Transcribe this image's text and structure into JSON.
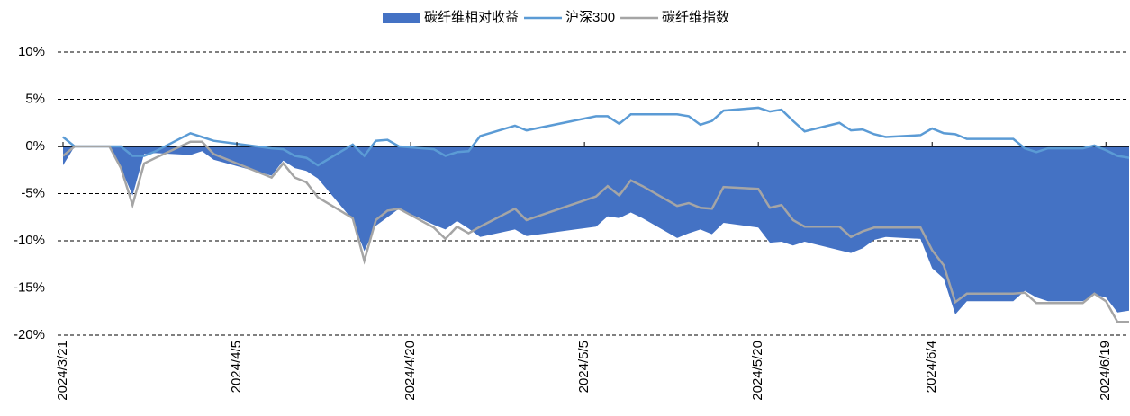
{
  "chart_data": {
    "type": "line",
    "x": [
      "2024/3/21",
      "2024/3/22",
      "2024/3/25",
      "2024/3/26",
      "2024/3/27",
      "2024/3/28",
      "2024/3/29",
      "2024/4/1",
      "2024/4/2",
      "2024/4/3",
      "2024/4/8",
      "2024/4/9",
      "2024/4/10",
      "2024/4/11",
      "2024/4/12",
      "2024/4/15",
      "2024/4/16",
      "2024/4/17",
      "2024/4/18",
      "2024/4/19",
      "2024/4/22",
      "2024/4/23",
      "2024/4/24",
      "2024/4/25",
      "2024/4/26",
      "2024/4/29",
      "2024/4/30",
      "2024/5/6",
      "2024/5/7",
      "2024/5/8",
      "2024/5/9",
      "2024/5/10",
      "2024/5/13",
      "2024/5/14",
      "2024/5/15",
      "2024/5/16",
      "2024/5/17",
      "2024/5/20",
      "2024/5/21",
      "2024/5/22",
      "2024/5/23",
      "2024/5/24",
      "2024/5/27",
      "2024/5/28",
      "2024/5/29",
      "2024/5/30",
      "2024/5/31",
      "2024/6/3",
      "2024/6/4",
      "2024/6/5",
      "2024/6/6",
      "2024/6/7",
      "2024/6/11",
      "2024/6/12",
      "2024/6/13",
      "2024/6/14",
      "2024/6/17",
      "2024/6/18",
      "2024/6/19",
      "2024/6/20",
      "2024/6/21"
    ],
    "series": [
      {
        "name": "碳纤维相对收益",
        "kind": "area",
        "color": "#4472c4",
        "values": [
          -2.0,
          0,
          0,
          -2.3,
          -5.2,
          -0.8,
          -0.7,
          -0.9,
          -0.5,
          -1.4,
          -3.1,
          -1.5,
          -2.3,
          -2.6,
          -3.4,
          -7.8,
          -11.1,
          -8.4,
          -7.5,
          -6.6,
          -8.3,
          -8.8,
          -7.9,
          -8.7,
          -9.6,
          -8.8,
          -9.5,
          -8.5,
          -7.4,
          -7.6,
          -7.0,
          -7.6,
          -9.7,
          -9.2,
          -8.8,
          -9.3,
          -8.1,
          -8.6,
          -10.2,
          -10.1,
          -10.5,
          -10.1,
          -11.0,
          -11.3,
          -10.8,
          -9.9,
          -9.6,
          -9.8,
          -12.9,
          -14.0,
          -17.8,
          -16.4,
          -16.4,
          -15.3,
          -16.0,
          -16.4,
          -16.4,
          -15.7,
          -16.0,
          -17.6,
          -17.4
        ]
      },
      {
        "name": "沪深300",
        "kind": "line",
        "color": "#5b9bd5",
        "values": [
          1.0,
          0,
          0,
          0,
          -1.0,
          -1.0,
          -0.5,
          1.4,
          1.0,
          0.6,
          -0.2,
          -0.3,
          -1.0,
          -1.2,
          -2.0,
          0.2,
          -1.0,
          0.6,
          0.7,
          0,
          -0.3,
          -1.0,
          -0.6,
          -0.5,
          1.1,
          2.2,
          1.7,
          3.2,
          3.2,
          2.4,
          3.4,
          3.4,
          3.4,
          3.2,
          2.3,
          2.7,
          3.8,
          4.1,
          3.7,
          3.9,
          2.7,
          1.6,
          2.5,
          1.7,
          1.8,
          1.3,
          1.0,
          1.2,
          1.9,
          1.4,
          1.3,
          0.8,
          0.8,
          -0.2,
          -0.6,
          -0.2,
          -0.2,
          0.1,
          -0.4,
          -1.0,
          -1.2
        ]
      },
      {
        "name": "碳纤维指数",
        "kind": "line",
        "color": "#a5a5a5",
        "values": [
          -1.0,
          0,
          0,
          -2.3,
          -6.2,
          -1.8,
          -1.2,
          0.5,
          0.5,
          -0.8,
          -3.3,
          -1.8,
          -3.3,
          -3.8,
          -5.4,
          -7.6,
          -12.1,
          -7.8,
          -6.8,
          -6.6,
          -8.6,
          -9.8,
          -8.5,
          -9.2,
          -8.5,
          -6.6,
          -7.8,
          -5.3,
          -4.2,
          -5.2,
          -3.6,
          -4.2,
          -6.3,
          -6.0,
          -6.5,
          -6.6,
          -4.3,
          -4.5,
          -6.5,
          -6.2,
          -7.8,
          -8.5,
          -8.5,
          -9.6,
          -9.0,
          -8.6,
          -8.6,
          -8.6,
          -11.0,
          -12.6,
          -16.5,
          -15.6,
          -15.6,
          -15.5,
          -16.6,
          -16.6,
          -16.6,
          -15.6,
          -16.4,
          -18.6,
          -18.6
        ]
      }
    ],
    "xlim": [
      "2024/3/21",
      "2024/6/21"
    ],
    "xticks": [
      "2024/3/21",
      "2024/4/5",
      "2024/4/20",
      "2024/5/5",
      "2024/5/20",
      "2024/6/4",
      "2024/6/19"
    ],
    "ylim": [
      -20,
      10
    ],
    "yticks": [
      {
        "value": -20,
        "label": "-20%"
      },
      {
        "value": -15,
        "label": "-15%"
      },
      {
        "value": -10,
        "label": "-10%"
      },
      {
        "value": -5,
        "label": "-5%"
      },
      {
        "value": 0,
        "label": "0%"
      },
      {
        "value": 5,
        "label": "5%"
      },
      {
        "value": 10,
        "label": "10%"
      }
    ],
    "grid": true,
    "legend": "top"
  }
}
